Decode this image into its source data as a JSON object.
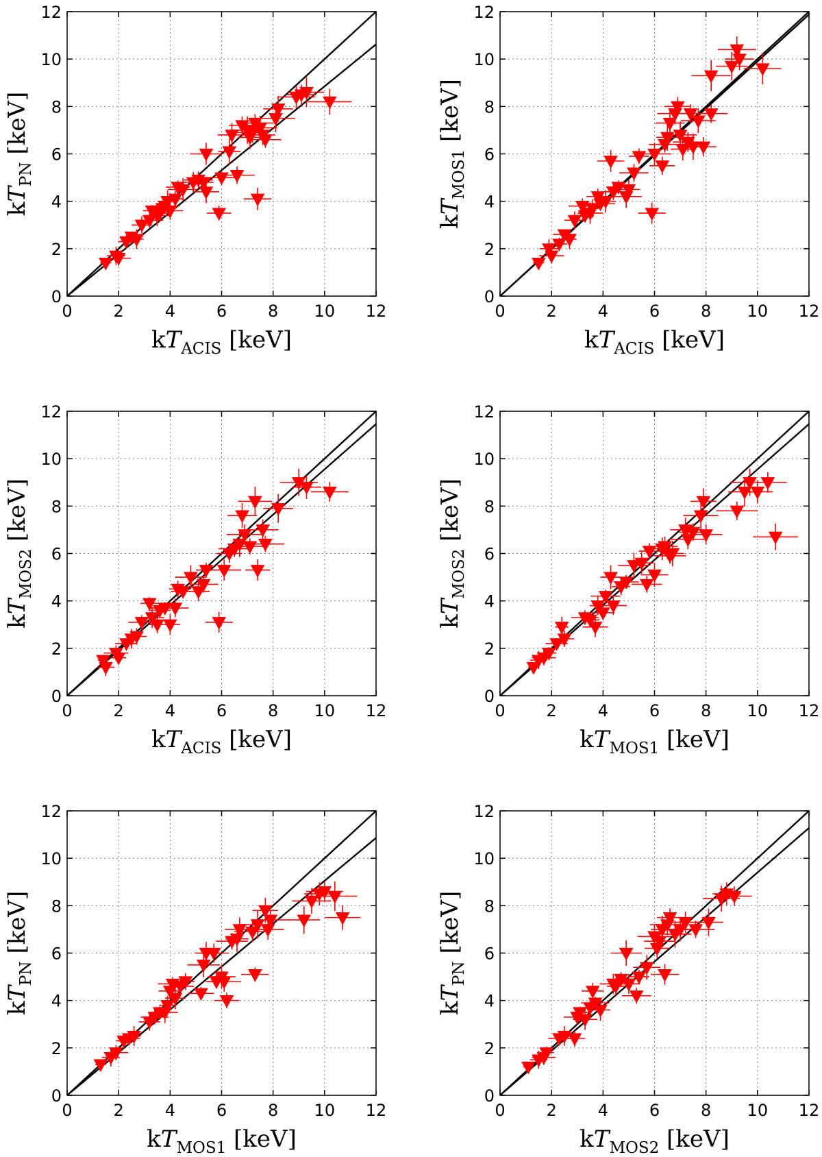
{
  "chart_data": [
    {
      "type": "scatter",
      "name": "pn-vs-acis",
      "xlabel": {
        "main": "kT",
        "sub": "ACIS",
        "unit": "[keV]"
      },
      "ylabel": {
        "main": "kT",
        "sub": "PN",
        "unit": "[keV]"
      },
      "xlim": [
        0,
        12
      ],
      "ylim": [
        0,
        12
      ],
      "xticks": [
        "0",
        "2",
        "4",
        "6",
        "8",
        "10",
        "12"
      ],
      "yticks": [
        "0",
        "2",
        "4",
        "6",
        "8",
        "10",
        "12"
      ],
      "fit_slope": 0.885,
      "points": [
        [
          1.5,
          1.4
        ],
        [
          1.9,
          1.7
        ],
        [
          2.0,
          1.6
        ],
        [
          2.3,
          2.3
        ],
        [
          2.5,
          2.5
        ],
        [
          2.7,
          2.4
        ],
        [
          2.9,
          3.0
        ],
        [
          3.2,
          3.2
        ],
        [
          3.3,
          3.6
        ],
        [
          3.5,
          3.4
        ],
        [
          3.6,
          3.5
        ],
        [
          3.7,
          3.7
        ],
        [
          3.8,
          3.8
        ],
        [
          3.9,
          4.0
        ],
        [
          4.0,
          3.6
        ],
        [
          4.2,
          4.1
        ],
        [
          4.3,
          4.6
        ],
        [
          4.5,
          4.5
        ],
        [
          4.9,
          4.8
        ],
        [
          5.1,
          4.9
        ],
        [
          5.3,
          4.8
        ],
        [
          5.4,
          4.4
        ],
        [
          5.4,
          6.0
        ],
        [
          5.9,
          3.5
        ],
        [
          6.0,
          5.0
        ],
        [
          6.3,
          6.1
        ],
        [
          6.4,
          6.8
        ],
        [
          6.6,
          5.1
        ],
        [
          6.8,
          7.2
        ],
        [
          7.0,
          7.0
        ],
        [
          7.1,
          6.7
        ],
        [
          7.2,
          6.9
        ],
        [
          7.3,
          7.3
        ],
        [
          7.4,
          4.1
        ],
        [
          7.5,
          7.1
        ],
        [
          7.6,
          6.8
        ],
        [
          7.7,
          6.6
        ],
        [
          8.1,
          7.5
        ],
        [
          8.2,
          7.9
        ],
        [
          8.9,
          8.4
        ],
        [
          9.1,
          8.5
        ],
        [
          9.3,
          8.6
        ],
        [
          10.2,
          8.2
        ]
      ]
    },
    {
      "type": "scatter",
      "name": "mos1-vs-acis",
      "xlabel": {
        "main": "kT",
        "sub": "ACIS",
        "unit": "[keV]"
      },
      "ylabel": {
        "main": "kT",
        "sub": "MOS1",
        "unit": "[keV]"
      },
      "xlim": [
        0,
        12
      ],
      "ylim": [
        0,
        12
      ],
      "xticks": [
        "0",
        "2",
        "4",
        "6",
        "8",
        "10",
        "12"
      ],
      "yticks": [
        "0",
        "2",
        "4",
        "6",
        "8",
        "10",
        "12"
      ],
      "fit_slope": 0.99,
      "points": [
        [
          1.5,
          1.4
        ],
        [
          1.9,
          2.0
        ],
        [
          2.0,
          1.7
        ],
        [
          2.3,
          2.2
        ],
        [
          2.5,
          2.6
        ],
        [
          2.7,
          2.4
        ],
        [
          2.9,
          3.2
        ],
        [
          3.2,
          3.8
        ],
        [
          3.3,
          3.4
        ],
        [
          3.5,
          3.5
        ],
        [
          3.6,
          3.7
        ],
        [
          3.8,
          4.2
        ],
        [
          3.9,
          3.9
        ],
        [
          4.1,
          4.0
        ],
        [
          4.3,
          5.7
        ],
        [
          4.4,
          4.4
        ],
        [
          4.6,
          4.6
        ],
        [
          4.9,
          4.2
        ],
        [
          5.0,
          4.5
        ],
        [
          5.2,
          5.2
        ],
        [
          5.4,
          5.9
        ],
        [
          5.9,
          3.5
        ],
        [
          6.0,
          6.0
        ],
        [
          6.3,
          5.5
        ],
        [
          6.4,
          6.4
        ],
        [
          6.5,
          6.7
        ],
        [
          6.6,
          7.3
        ],
        [
          6.8,
          7.7
        ],
        [
          6.9,
          8.0
        ],
        [
          7.0,
          6.8
        ],
        [
          7.1,
          6.2
        ],
        [
          7.3,
          6.5
        ],
        [
          7.4,
          7.7
        ],
        [
          7.5,
          6.3
        ],
        [
          7.7,
          7.4
        ],
        [
          7.9,
          6.3
        ],
        [
          8.2,
          7.7
        ],
        [
          8.2,
          9.3
        ],
        [
          9.0,
          9.7
        ],
        [
          9.2,
          10.4
        ],
        [
          9.3,
          10.0
        ],
        [
          10.2,
          9.6
        ]
      ]
    },
    {
      "type": "scatter",
      "name": "mos2-vs-acis",
      "xlabel": {
        "main": "kT",
        "sub": "ACIS",
        "unit": "[keV]"
      },
      "ylabel": {
        "main": "kT",
        "sub": "MOS2",
        "unit": "[keV]"
      },
      "xlim": [
        0,
        12
      ],
      "ylim": [
        0,
        12
      ],
      "xticks": [
        "0",
        "2",
        "4",
        "6",
        "8",
        "10",
        "12"
      ],
      "yticks": [
        "0",
        "2",
        "4",
        "6",
        "8",
        "10",
        "12"
      ],
      "fit_slope": 0.955,
      "points": [
        [
          1.4,
          1.5
        ],
        [
          1.5,
          1.2
        ],
        [
          1.9,
          1.8
        ],
        [
          2.0,
          1.6
        ],
        [
          2.3,
          2.2
        ],
        [
          2.5,
          2.4
        ],
        [
          2.7,
          2.5
        ],
        [
          2.9,
          3.1
        ],
        [
          3.2,
          3.9
        ],
        [
          3.3,
          3.3
        ],
        [
          3.5,
          3.0
        ],
        [
          3.6,
          3.6
        ],
        [
          3.8,
          3.7
        ],
        [
          4.0,
          3.0
        ],
        [
          4.2,
          3.7
        ],
        [
          4.3,
          4.5
        ],
        [
          4.5,
          4.4
        ],
        [
          4.8,
          5.0
        ],
        [
          5.1,
          4.4
        ],
        [
          5.3,
          4.7
        ],
        [
          5.4,
          5.3
        ],
        [
          5.9,
          3.1
        ],
        [
          6.1,
          5.3
        ],
        [
          6.3,
          6.0
        ],
        [
          6.5,
          6.2
        ],
        [
          6.7,
          6.4
        ],
        [
          6.8,
          7.6
        ],
        [
          6.9,
          6.8
        ],
        [
          7.1,
          6.3
        ],
        [
          7.3,
          8.2
        ],
        [
          7.4,
          5.3
        ],
        [
          7.6,
          7.0
        ],
        [
          7.7,
          6.4
        ],
        [
          8.2,
          7.9
        ],
        [
          9.0,
          9.0
        ],
        [
          9.3,
          8.8
        ],
        [
          10.2,
          8.6
        ]
      ]
    },
    {
      "type": "scatter",
      "name": "mos2-vs-mos1",
      "xlabel": {
        "main": "kT",
        "sub": "MOS1",
        "unit": "[keV]"
      },
      "ylabel": {
        "main": "kT",
        "sub": "MOS2",
        "unit": "[keV]"
      },
      "xlim": [
        0,
        12
      ],
      "ylim": [
        0,
        12
      ],
      "xticks": [
        "0",
        "2",
        "4",
        "6",
        "8",
        "10",
        "12"
      ],
      "yticks": [
        "0",
        "2",
        "4",
        "6",
        "8",
        "10",
        "12"
      ],
      "fit_slope": 0.955,
      "points": [
        [
          1.3,
          1.2
        ],
        [
          1.5,
          1.5
        ],
        [
          1.7,
          1.6
        ],
        [
          1.9,
          1.8
        ],
        [
          2.2,
          2.2
        ],
        [
          2.4,
          2.9
        ],
        [
          2.5,
          2.4
        ],
        [
          3.3,
          3.3
        ],
        [
          3.5,
          3.2
        ],
        [
          3.7,
          2.9
        ],
        [
          3.8,
          3.8
        ],
        [
          4.0,
          3.5
        ],
        [
          4.1,
          4.2
        ],
        [
          4.3,
          5.0
        ],
        [
          4.4,
          3.8
        ],
        [
          4.7,
          4.6
        ],
        [
          4.9,
          4.8
        ],
        [
          5.2,
          5.5
        ],
        [
          5.5,
          5.6
        ],
        [
          5.7,
          4.7
        ],
        [
          5.8,
          6.1
        ],
        [
          6.0,
          5.1
        ],
        [
          6.3,
          6.2
        ],
        [
          6.4,
          6.3
        ],
        [
          6.6,
          5.9
        ],
        [
          6.7,
          6.0
        ],
        [
          7.2,
          7.0
        ],
        [
          7.3,
          6.6
        ],
        [
          7.5,
          6.9
        ],
        [
          7.8,
          7.6
        ],
        [
          7.9,
          8.2
        ],
        [
          8.0,
          6.8
        ],
        [
          9.2,
          7.8
        ],
        [
          9.5,
          8.6
        ],
        [
          9.7,
          9.0
        ],
        [
          10.0,
          8.6
        ],
        [
          10.4,
          9.0
        ],
        [
          10.7,
          6.7
        ]
      ]
    },
    {
      "type": "scatter",
      "name": "pn-vs-mos1",
      "xlabel": {
        "main": "kT",
        "sub": "MOS1",
        "unit": "[keV]"
      },
      "ylabel": {
        "main": "kT",
        "sub": "PN",
        "unit": "[keV]"
      },
      "xlim": [
        0,
        12
      ],
      "ylim": [
        0,
        12
      ],
      "xticks": [
        "0",
        "2",
        "4",
        "6",
        "8",
        "10",
        "12"
      ],
      "yticks": [
        "0",
        "2",
        "4",
        "6",
        "8",
        "10",
        "12"
      ],
      "fit_slope": 0.905,
      "points": [
        [
          1.3,
          1.3
        ],
        [
          1.7,
          1.6
        ],
        [
          1.9,
          1.8
        ],
        [
          2.2,
          2.3
        ],
        [
          2.4,
          2.4
        ],
        [
          2.6,
          2.5
        ],
        [
          3.2,
          3.1
        ],
        [
          3.4,
          3.3
        ],
        [
          3.6,
          3.5
        ],
        [
          3.8,
          3.5
        ],
        [
          3.9,
          3.8
        ],
        [
          4.0,
          4.4
        ],
        [
          4.1,
          4.7
        ],
        [
          4.2,
          4.1
        ],
        [
          4.4,
          4.6
        ],
        [
          4.6,
          4.8
        ],
        [
          5.2,
          4.3
        ],
        [
          5.3,
          5.5
        ],
        [
          5.4,
          6.0
        ],
        [
          5.7,
          6.0
        ],
        [
          5.8,
          4.8
        ],
        [
          6.0,
          5.0
        ],
        [
          6.1,
          4.8
        ],
        [
          6.2,
          4.0
        ],
        [
          6.4,
          6.5
        ],
        [
          6.6,
          6.6
        ],
        [
          6.7,
          7.0
        ],
        [
          7.2,
          6.9
        ],
        [
          7.3,
          5.1
        ],
        [
          7.4,
          7.2
        ],
        [
          7.7,
          7.8
        ],
        [
          7.8,
          7.0
        ],
        [
          7.9,
          7.4
        ],
        [
          9.2,
          7.4
        ],
        [
          9.5,
          8.2
        ],
        [
          9.8,
          8.5
        ],
        [
          10.0,
          8.6
        ],
        [
          10.4,
          8.4
        ],
        [
          10.7,
          7.5
        ]
      ]
    },
    {
      "type": "scatter",
      "name": "pn-vs-mos2",
      "xlabel": {
        "main": "kT",
        "sub": "MOS2",
        "unit": "[keV]"
      },
      "ylabel": {
        "main": "kT",
        "sub": "PN",
        "unit": "[keV]"
      },
      "xlim": [
        0,
        12
      ],
      "ylim": [
        0,
        12
      ],
      "xticks": [
        "0",
        "2",
        "4",
        "6",
        "8",
        "10",
        "12"
      ],
      "yticks": [
        "0",
        "2",
        "4",
        "6",
        "8",
        "10",
        "12"
      ],
      "fit_slope": 0.94,
      "points": [
        [
          1.1,
          1.2
        ],
        [
          1.5,
          1.5
        ],
        [
          1.7,
          1.6
        ],
        [
          1.8,
          1.8
        ],
        [
          2.3,
          2.4
        ],
        [
          2.5,
          2.5
        ],
        [
          2.9,
          2.4
        ],
        [
          3.0,
          3.3
        ],
        [
          3.1,
          3.5
        ],
        [
          3.3,
          3.2
        ],
        [
          3.5,
          3.7
        ],
        [
          3.6,
          4.4
        ],
        [
          3.7,
          3.9
        ],
        [
          3.9,
          3.6
        ],
        [
          4.4,
          4.7
        ],
        [
          4.5,
          4.6
        ],
        [
          4.7,
          4.9
        ],
        [
          4.9,
          6.0
        ],
        [
          5.0,
          4.7
        ],
        [
          5.3,
          4.2
        ],
        [
          5.4,
          5.0
        ],
        [
          5.7,
          5.4
        ],
        [
          6.0,
          6.7
        ],
        [
          6.1,
          6.2
        ],
        [
          6.2,
          6.5
        ],
        [
          6.3,
          7.0
        ],
        [
          6.4,
          5.1
        ],
        [
          6.5,
          7.2
        ],
        [
          6.6,
          7.5
        ],
        [
          6.8,
          6.8
        ],
        [
          7.0,
          7.0
        ],
        [
          7.2,
          7.3
        ],
        [
          7.6,
          7.0
        ],
        [
          8.1,
          7.3
        ],
        [
          8.6,
          8.3
        ],
        [
          8.8,
          8.5
        ],
        [
          9.1,
          8.4
        ]
      ]
    }
  ]
}
